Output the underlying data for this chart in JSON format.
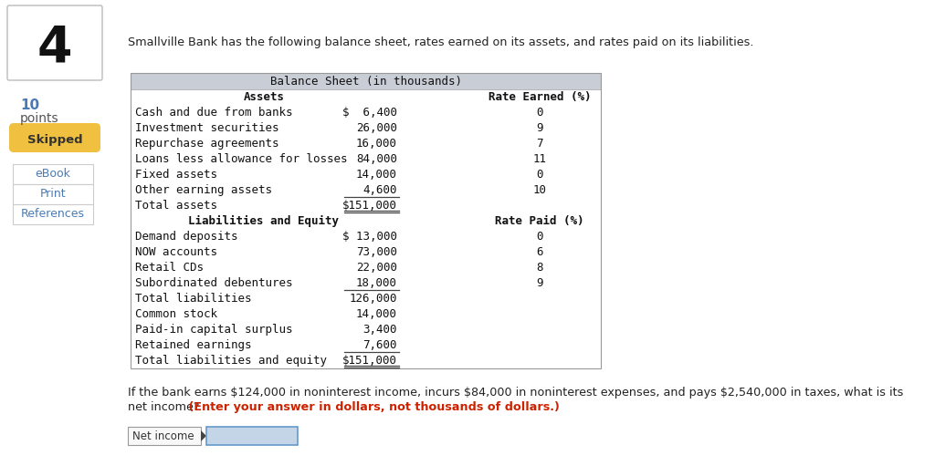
{
  "background_color": "#f8f8f8",
  "page_bg": "#ffffff",
  "question_number": "4",
  "points": "10",
  "points_label": "points",
  "skipped_label": "Skipped",
  "skipped_color": "#f0c040",
  "sidebar_links": [
    "eBook",
    "Print",
    "References"
  ],
  "sidebar_link_color": "#4a7ab5",
  "intro_text": "Smallville Bank has the following balance sheet, rates earned on its assets, and rates paid on its liabilities.",
  "table_header": "Balance Sheet (in thousands)",
  "table_header_bg": "#c8cdd6",
  "table_row_bg_white": "#ffffff",
  "table_row_bg_gray": "#e8eaf0",
  "assets_header": "Assets",
  "rate_earned_header": "Rate Earned (%)",
  "liabilities_header": "Liabilities and Equity",
  "rate_paid_header": "Rate Paid (%)",
  "assets": [
    [
      "Cash and due from banks",
      "$  6,400",
      "0"
    ],
    [
      "Investment securities",
      "26,000",
      "9"
    ],
    [
      "Repurchase agreements",
      "16,000",
      "7"
    ],
    [
      "Loans less allowance for losses",
      "84,000",
      "11"
    ],
    [
      "Fixed assets",
      "14,000",
      "0"
    ],
    [
      "Other earning assets",
      "4,600",
      "10"
    ]
  ],
  "total_assets_label": "Total assets",
  "total_assets_value": "$151,000",
  "liabilities": [
    [
      "Demand deposits",
      "$ 13,000",
      "0"
    ],
    [
      "NOW accounts",
      "73,000",
      "6"
    ],
    [
      "Retail CDs",
      "22,000",
      "8"
    ],
    [
      "Subordinated debentures",
      "18,000",
      "9"
    ]
  ],
  "total_liabilities_label": "Total liabilities",
  "total_liabilities_value": "126,000",
  "equity": [
    [
      "Common stock",
      "14,000"
    ],
    [
      "Paid-in capital surplus",
      "3,400"
    ],
    [
      "Retained earnings",
      "7,600"
    ]
  ],
  "total_equity_label": "Total liabilities and equity",
  "total_equity_value": "$151,000",
  "question_line1": "If the bank earns $124,000 in noninterest income, incurs $84,000 in noninterest expenses, and pays $2,540,000 in taxes, what is its",
  "question_line2a": "net income?",
  "question_line2b": " (Enter your answer in dollars, not thousands of dollars.)",
  "question_color": "#222222",
  "question_highlight_color": "#cc2200",
  "input_label": "Net income",
  "font_mono": "monospace",
  "font_sans": "DejaVu Sans"
}
